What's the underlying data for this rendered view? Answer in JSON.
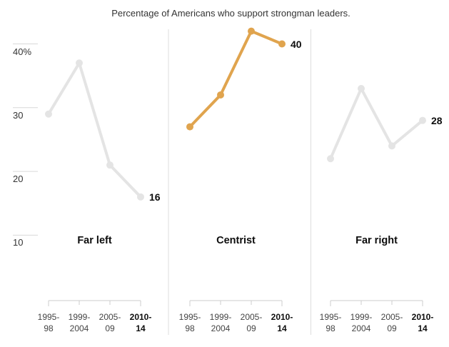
{
  "title": "Percentage of Americans who support strongman leaders.",
  "colors": {
    "highlight_line": "#e0a44e",
    "muted_line": "#e4e4e4",
    "axis_line": "#cccccc",
    "ytick_line": "#d9d9d9",
    "divider_line": "#dddddd",
    "text_dark": "#0d0d0d",
    "text_medium": "#333333",
    "text_axis": "#444444"
  },
  "chart_data": {
    "type": "line",
    "title": "Percentage of Americans who support strongman leaders.",
    "layout": "three side-by-side small multiples sharing one y-axis, separated by vertical divider lines",
    "legend": "none",
    "grid": false,
    "categories": [
      "1995-98",
      "1999-2004",
      "2005-09",
      "2010-14"
    ],
    "category_tick_labels": [
      {
        "line1": "1995-",
        "line2": "98",
        "bold": false
      },
      {
        "line1": "1999-",
        "line2": "2004",
        "bold": false
      },
      {
        "line1": "2005-",
        "line2": "09",
        "bold": false
      },
      {
        "line1": "2010-",
        "line2": "14",
        "bold": true
      }
    ],
    "y_axis": {
      "ticks": [
        {
          "value": 40,
          "label": "40%"
        },
        {
          "value": 30,
          "label": "30"
        },
        {
          "value": 20,
          "label": "20"
        },
        {
          "value": 10,
          "label": "10"
        }
      ],
      "shown_range": [
        10,
        44
      ]
    },
    "panels": [
      {
        "name": "Far left",
        "values": [
          29,
          37,
          21,
          16
        ],
        "end_label": "16",
        "highlighted": false
      },
      {
        "name": "Centrist",
        "values": [
          27,
          32,
          42,
          40
        ],
        "end_label": "40",
        "highlighted": true
      },
      {
        "name": "Far right",
        "values": [
          22,
          33,
          24,
          28
        ],
        "end_label": "28",
        "highlighted": false
      }
    ]
  }
}
